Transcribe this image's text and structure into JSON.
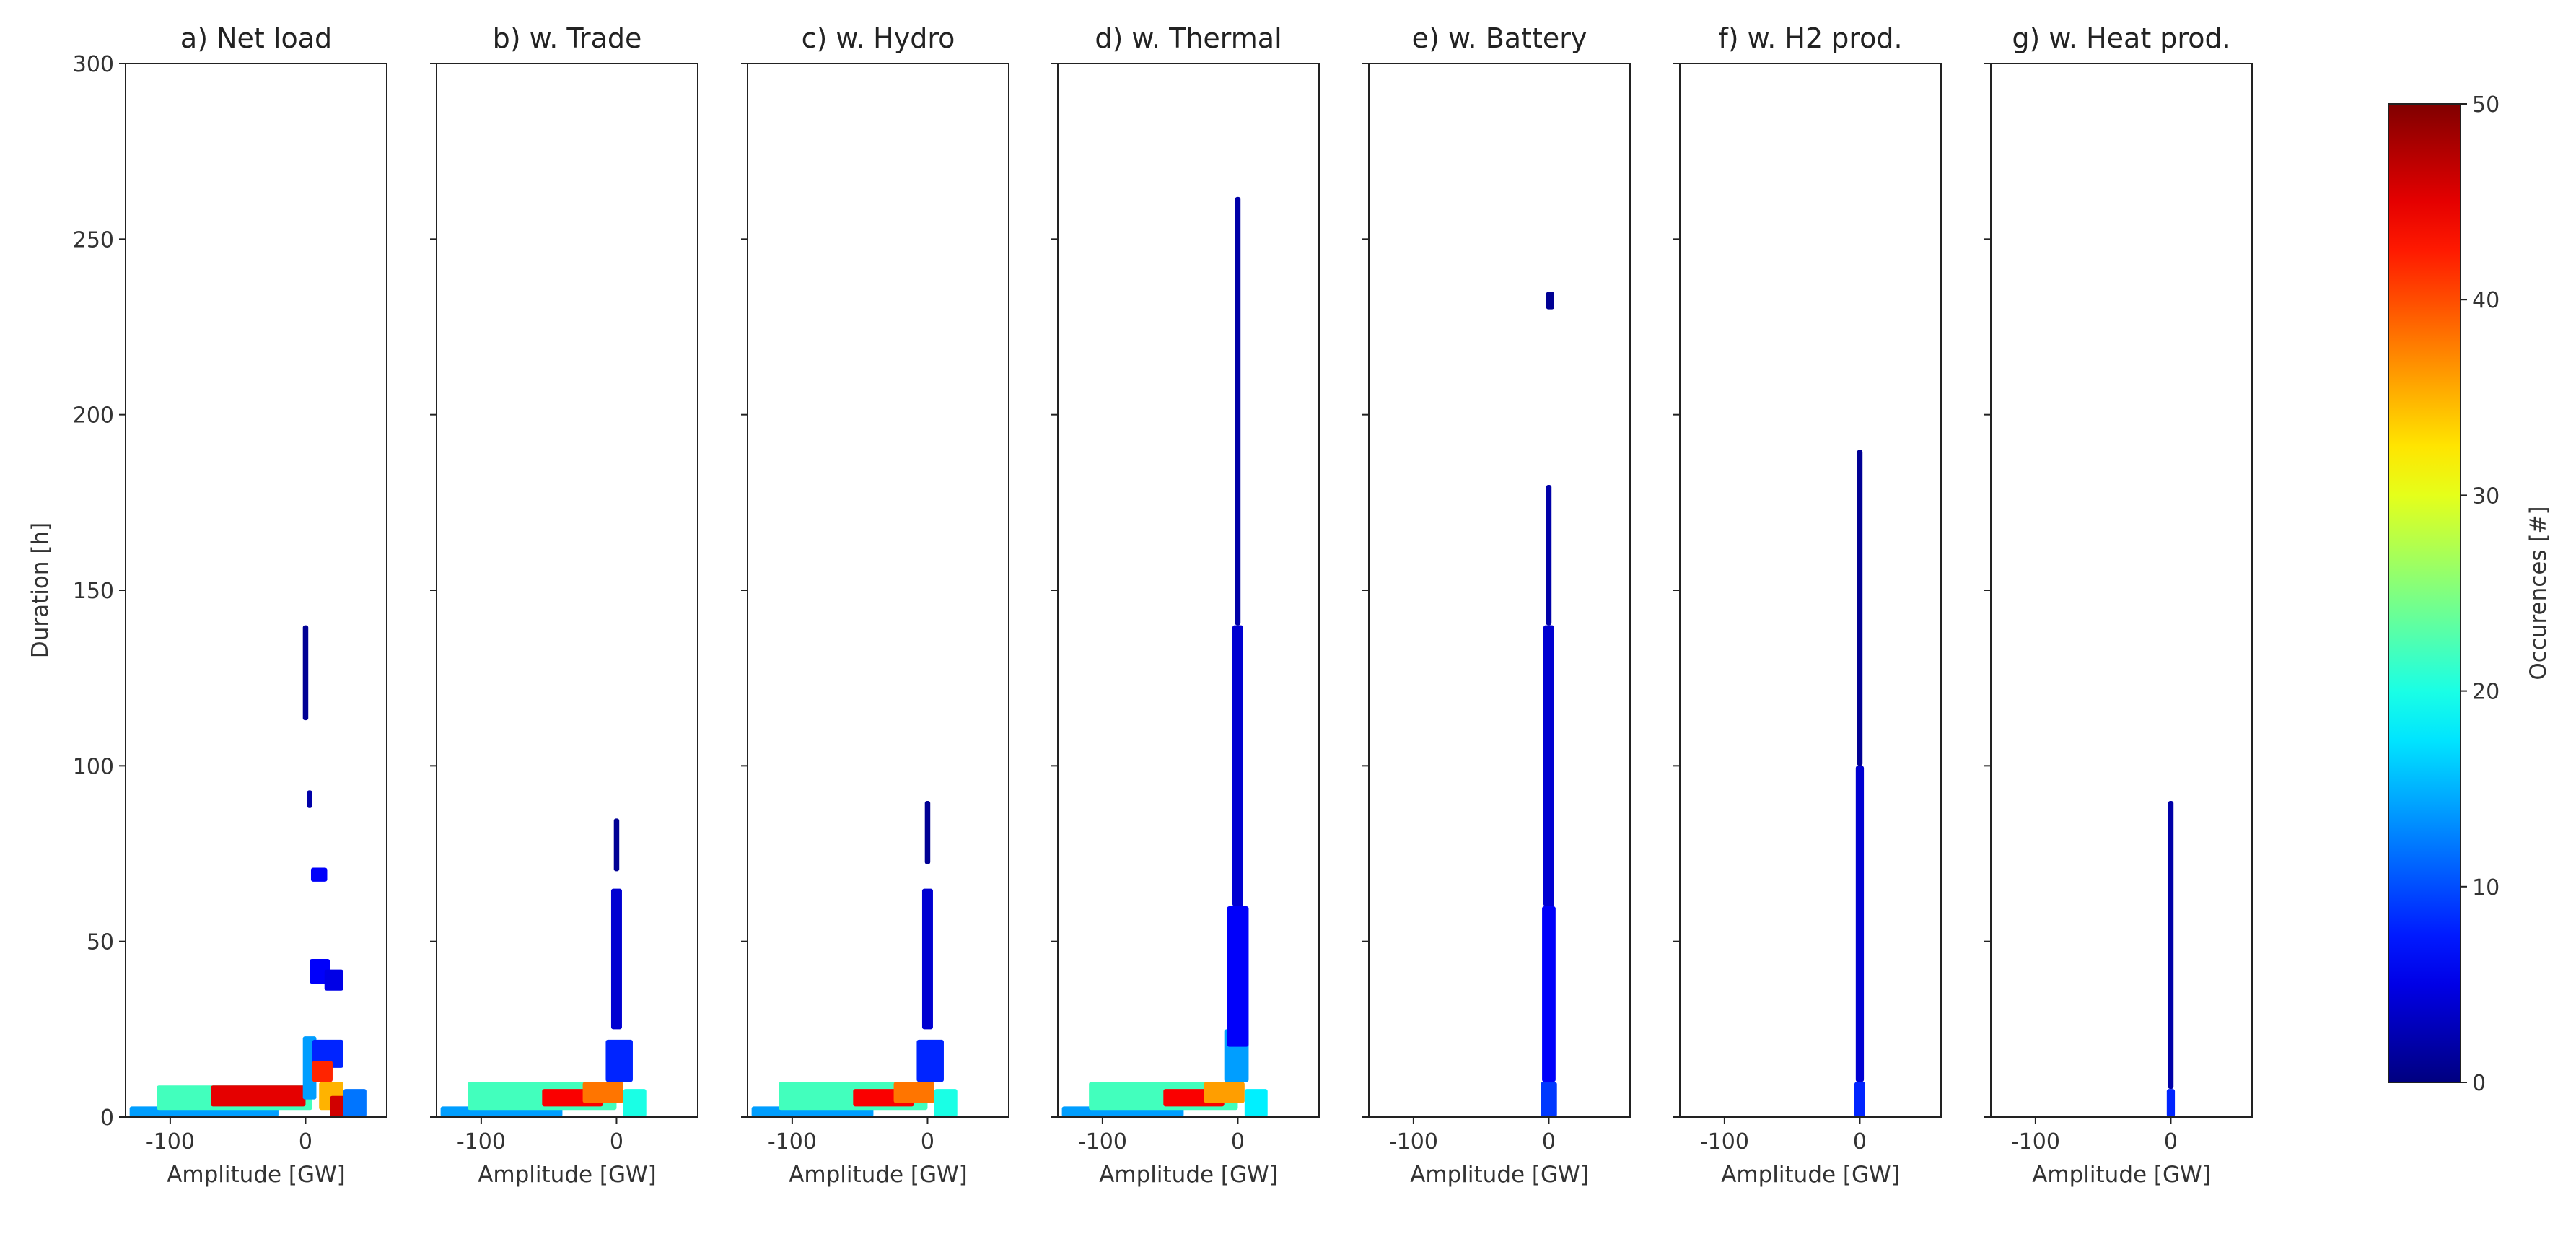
{
  "chart_data": {
    "type": "heatmap",
    "description_units": {
      "x": "GW",
      "y": "h",
      "color": "#"
    },
    "xlabel": "Amplitude [GW]",
    "ylabel": "Duration [h]",
    "xlim": [
      -133,
      60
    ],
    "ylim": [
      0,
      300
    ],
    "x_ticks": [
      -100,
      0
    ],
    "y_ticks": [
      0,
      50,
      100,
      150,
      200,
      250,
      300
    ],
    "colorbar": {
      "label": "Occurences [#]",
      "range": [
        0,
        50
      ],
      "ticks": [
        0,
        10,
        20,
        30,
        40,
        50
      ],
      "colormap": "jet"
    },
    "panels": [
      {
        "title": "a) Net load",
        "regions": [
          {
            "x": [
              -130,
              -20
            ],
            "y": [
              0,
              3
            ],
            "count": 14
          },
          {
            "x": [
              -110,
              5
            ],
            "y": [
              2,
              9
            ],
            "count": 22
          },
          {
            "x": [
              -70,
              0
            ],
            "y": [
              3,
              9
            ],
            "count": 45
          },
          {
            "x": [
              -2,
              8
            ],
            "y": [
              5,
              23
            ],
            "count": 14
          },
          {
            "x": [
              5,
              28
            ],
            "y": [
              14,
              22
            ],
            "count": 8
          },
          {
            "x": [
              5,
              20
            ],
            "y": [
              10,
              16
            ],
            "count": 42
          },
          {
            "x": [
              10,
              28
            ],
            "y": [
              2,
              10
            ],
            "count": 35
          },
          {
            "x": [
              18,
              30
            ],
            "y": [
              0,
              6
            ],
            "count": 46
          },
          {
            "x": [
              28,
              45
            ],
            "y": [
              0,
              8
            ],
            "count": 12
          },
          {
            "x": [
              3,
              18
            ],
            "y": [
              38,
              45
            ],
            "count": 6
          },
          {
            "x": [
              14,
              28
            ],
            "y": [
              36,
              42
            ],
            "count": 5
          },
          {
            "x": [
              4,
              16
            ],
            "y": [
              67,
              71
            ],
            "count": 6
          },
          {
            "x": [
              1,
              5
            ],
            "y": [
              88,
              93
            ],
            "count": 2
          },
          {
            "x": [
              -2,
              2
            ],
            "y": [
              113,
              140
            ],
            "count": 1
          }
        ]
      },
      {
        "title": "b) w. Trade",
        "regions": [
          {
            "x": [
              -130,
              -40
            ],
            "y": [
              0,
              3
            ],
            "count": 14
          },
          {
            "x": [
              -110,
              0
            ],
            "y": [
              2,
              10
            ],
            "count": 22
          },
          {
            "x": [
              -55,
              -10
            ],
            "y": [
              3,
              8
            ],
            "count": 44
          },
          {
            "x": [
              -25,
              5
            ],
            "y": [
              4,
              10
            ],
            "count": 38
          },
          {
            "x": [
              -8,
              12
            ],
            "y": [
              10,
              22
            ],
            "count": 8
          },
          {
            "x": [
              5,
              22
            ],
            "y": [
              0,
              8
            ],
            "count": 20
          },
          {
            "x": [
              -4,
              4
            ],
            "y": [
              25,
              65
            ],
            "count": 4
          },
          {
            "x": [
              -2,
              2
            ],
            "y": [
              70,
              85
            ],
            "count": 1
          }
        ]
      },
      {
        "title": "c) w. Hydro",
        "regions": [
          {
            "x": [
              -130,
              -40
            ],
            "y": [
              0,
              3
            ],
            "count": 14
          },
          {
            "x": [
              -110,
              0
            ],
            "y": [
              2,
              10
            ],
            "count": 22
          },
          {
            "x": [
              -55,
              -10
            ],
            "y": [
              3,
              8
            ],
            "count": 44
          },
          {
            "x": [
              -25,
              5
            ],
            "y": [
              4,
              10
            ],
            "count": 38
          },
          {
            "x": [
              -8,
              12
            ],
            "y": [
              10,
              22
            ],
            "count": 8
          },
          {
            "x": [
              5,
              22
            ],
            "y": [
              0,
              8
            ],
            "count": 20
          },
          {
            "x": [
              -4,
              4
            ],
            "y": [
              25,
              65
            ],
            "count": 4
          },
          {
            "x": [
              -2,
              2
            ],
            "y": [
              72,
              90
            ],
            "count": 1
          }
        ]
      },
      {
        "title": "d) w. Thermal",
        "regions": [
          {
            "x": [
              -130,
              -40
            ],
            "y": [
              0,
              3
            ],
            "count": 14
          },
          {
            "x": [
              -110,
              0
            ],
            "y": [
              2,
              10
            ],
            "count": 22
          },
          {
            "x": [
              -55,
              -10
            ],
            "y": [
              3,
              8
            ],
            "count": 44
          },
          {
            "x": [
              -25,
              5
            ],
            "y": [
              4,
              10
            ],
            "count": 36
          },
          {
            "x": [
              -10,
              8
            ],
            "y": [
              10,
              25
            ],
            "count": 14
          },
          {
            "x": [
              -8,
              8
            ],
            "y": [
              20,
              60
            ],
            "count": 6
          },
          {
            "x": [
              5,
              22
            ],
            "y": [
              0,
              8
            ],
            "count": 18
          },
          {
            "x": [
              -4,
              4
            ],
            "y": [
              60,
              140
            ],
            "count": 4
          },
          {
            "x": [
              -2,
              2
            ],
            "y": [
              140,
              262
            ],
            "count": 2
          }
        ]
      },
      {
        "title": "e) w. Battery",
        "regions": [
          {
            "x": [
              -6,
              6
            ],
            "y": [
              0,
              10
            ],
            "count": 9
          },
          {
            "x": [
              -5,
              5
            ],
            "y": [
              10,
              60
            ],
            "count": 6
          },
          {
            "x": [
              -4,
              4
            ],
            "y": [
              60,
              140
            ],
            "count": 4
          },
          {
            "x": [
              -2,
              2
            ],
            "y": [
              140,
              180
            ],
            "count": 2
          },
          {
            "x": [
              -2,
              4
            ],
            "y": [
              230,
              235
            ],
            "count": 1
          }
        ]
      },
      {
        "title": "f) w. H2 prod.",
        "regions": [
          {
            "x": [
              -4,
              4
            ],
            "y": [
              0,
              10
            ],
            "count": 8
          },
          {
            "x": [
              -3,
              3
            ],
            "y": [
              10,
              100
            ],
            "count": 4
          },
          {
            "x": [
              -2,
              2
            ],
            "y": [
              100,
              190
            ],
            "count": 1
          }
        ]
      },
      {
        "title": "g) w. Heat prod.",
        "regions": [
          {
            "x": [
              -3,
              3
            ],
            "y": [
              0,
              8
            ],
            "count": 8
          },
          {
            "x": [
              -2,
              2
            ],
            "y": [
              8,
              90
            ],
            "count": 2
          }
        ]
      }
    ]
  }
}
